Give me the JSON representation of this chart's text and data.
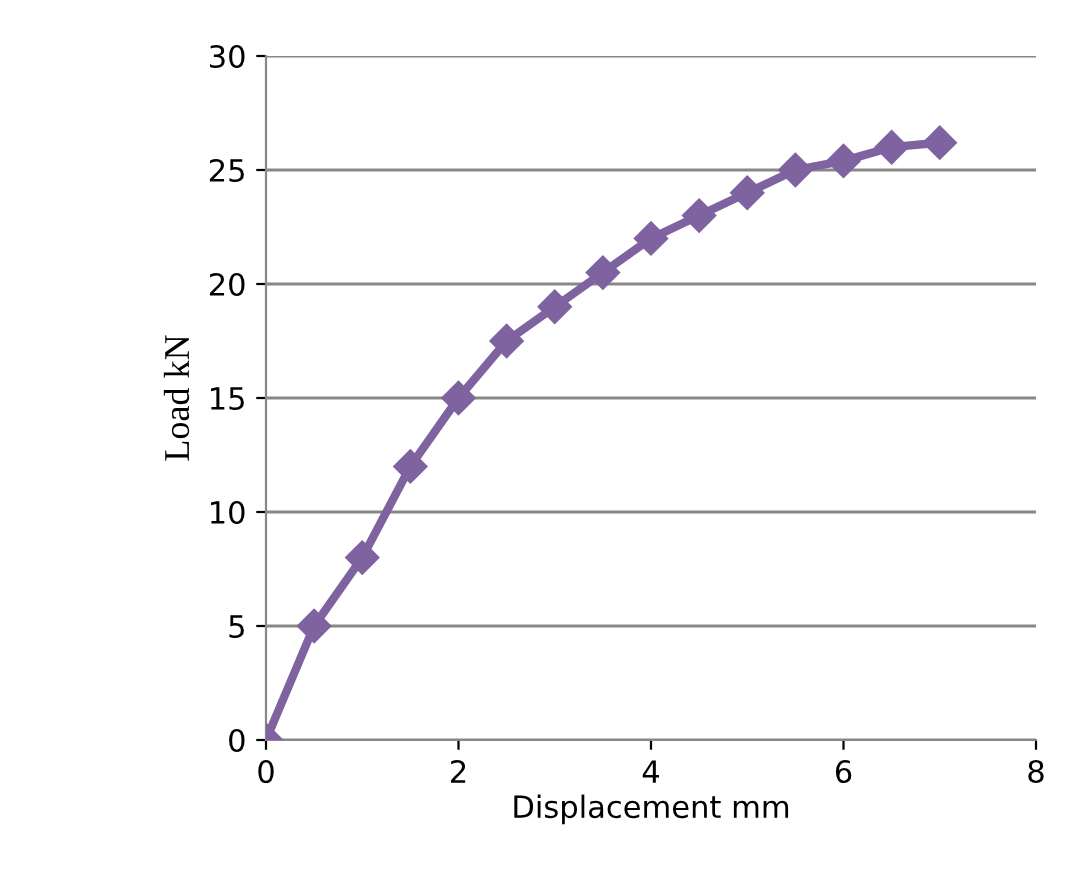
{
  "chart_data": {
    "type": "line",
    "xlabel": "Displacement mm",
    "ylabel": "Load kN",
    "x": [
      0,
      0.5,
      1,
      1.5,
      2,
      2.5,
      3,
      3.5,
      4,
      4.5,
      5,
      5.5,
      6,
      6.5,
      7
    ],
    "series": [
      {
        "color": "#7f63a1",
        "values": [
          0,
          5,
          8,
          12,
          15,
          17.5,
          19,
          20.5,
          22,
          23,
          24,
          25,
          25.4,
          26,
          26.2
        ]
      }
    ],
    "xlim": [
      0,
      8
    ],
    "ylim": [
      0,
      30
    ],
    "xticks": [
      0,
      2,
      4,
      6,
      8
    ],
    "yticks": [
      0,
      5,
      10,
      15,
      20,
      25,
      30
    ],
    "grid": "y",
    "marker": "diamond",
    "line_style": "solid",
    "legend": false
  }
}
